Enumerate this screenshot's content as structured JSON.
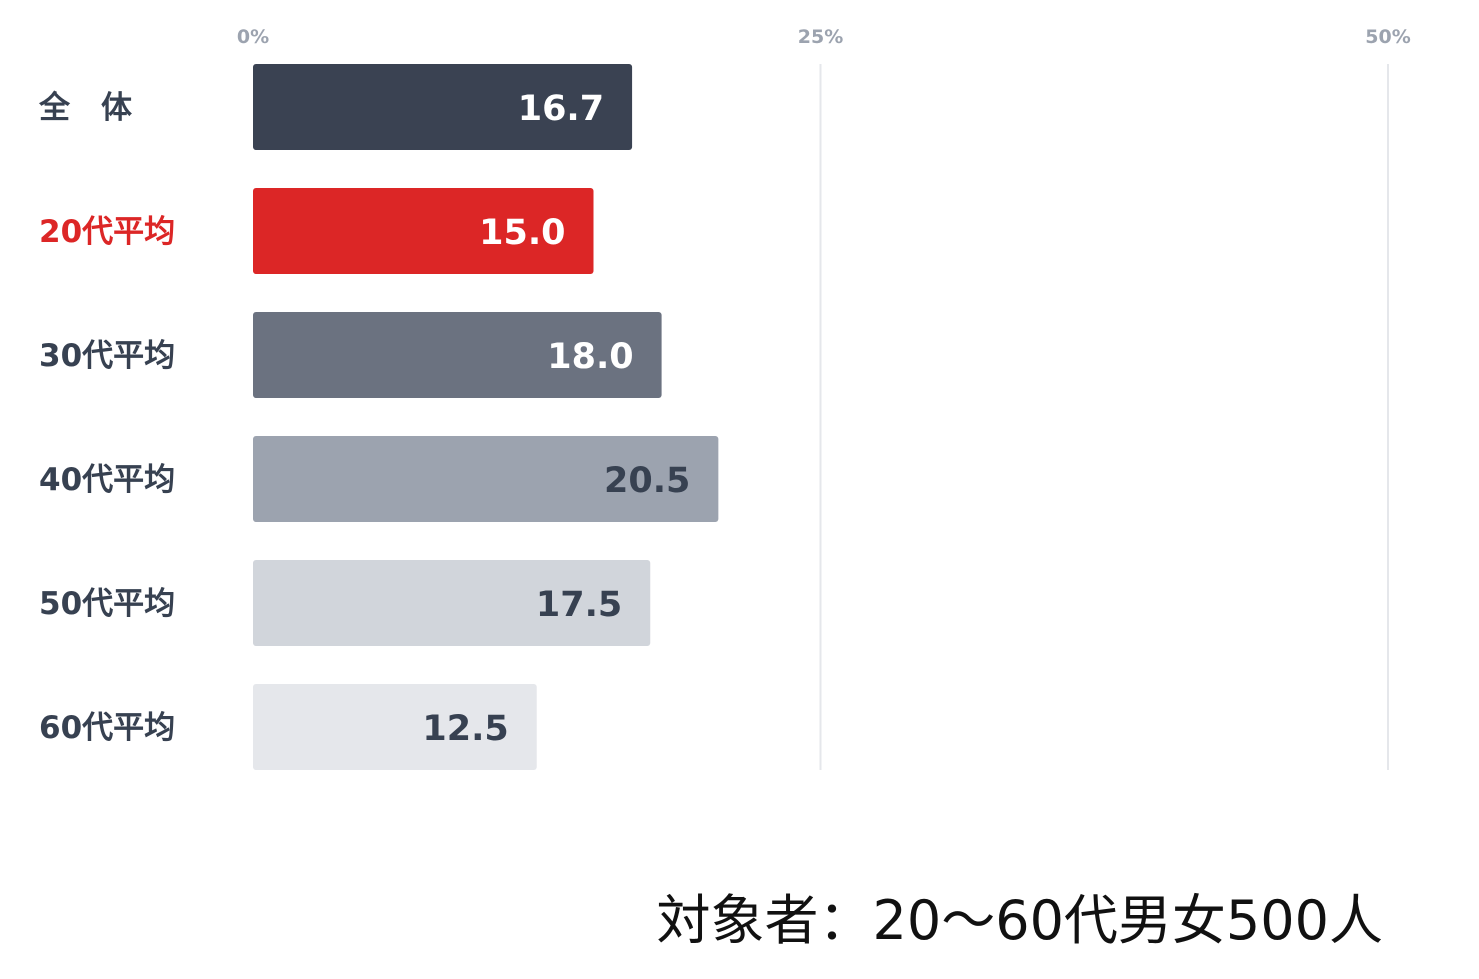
{
  "chart_data": {
    "type": "bar",
    "orientation": "horizontal",
    "categories": [
      "全　体",
      "20代平均",
      "30代平均",
      "40代平均",
      "50代平均",
      "60代平均"
    ],
    "values": [
      16.7,
      15.0,
      18.0,
      20.5,
      17.5,
      12.5
    ],
    "value_labels": [
      "16.7",
      "15.0",
      "18.0",
      "20.5",
      "17.5",
      "12.5"
    ],
    "x_ticks": [
      "0%",
      "25%",
      "50%"
    ],
    "x_tick_values": [
      0,
      25,
      50
    ],
    "xlim": [
      0,
      50
    ],
    "grid": true,
    "title": "",
    "xlabel": "",
    "ylabel": "",
    "bar_colors": [
      "#3a4252",
      "#dc2626",
      "#6b7280",
      "#9ca3af",
      "#d1d5db",
      "#e5e7eb"
    ],
    "value_label_colors": [
      "#ffffff",
      "#ffffff",
      "#ffffff",
      "#374151",
      "#374151",
      "#374151"
    ],
    "category_label_colors": [
      "#374151",
      "#dc2626",
      "#374151",
      "#374151",
      "#374151",
      "#374151"
    ]
  },
  "footnote": "対象者：20～60代男女500人"
}
